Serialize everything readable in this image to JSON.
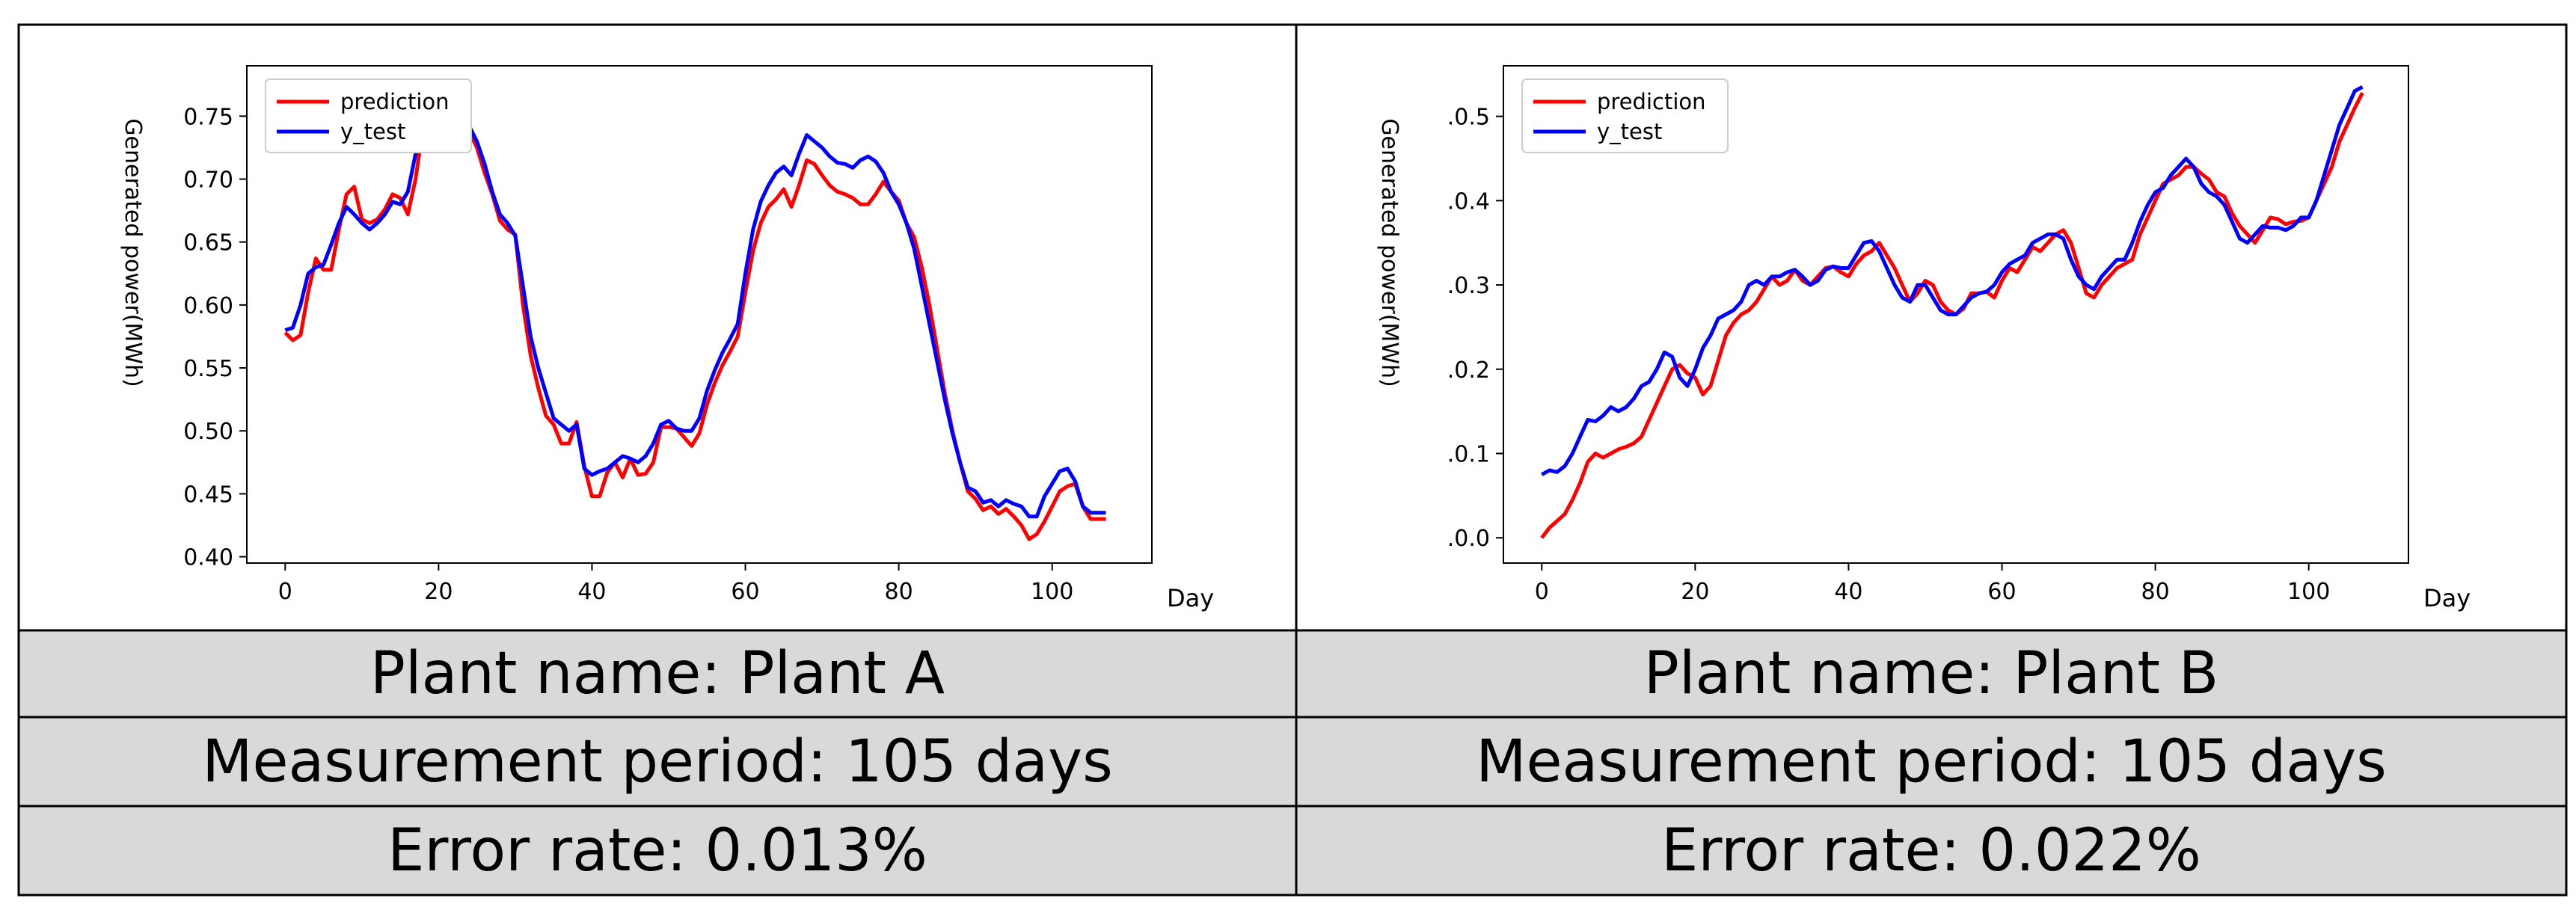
{
  "colors": {
    "prediction": "#ff0000",
    "y_test": "#0000ff",
    "info_row_bg": "#d9d9d9",
    "border": "#000000"
  },
  "chart_data": [
    {
      "type": "line",
      "title": "",
      "xlabel": "Day",
      "ylabel": "Generated power(MWh)",
      "xlim": [
        -5,
        113
      ],
      "ylim": [
        0.395,
        0.79
      ],
      "xticks": [
        0,
        20,
        40,
        60,
        80,
        100
      ],
      "yticks": [
        0.4,
        0.45,
        0.5,
        0.55,
        0.6,
        0.65,
        0.7,
        0.75
      ],
      "ytick_labels": [
        "0.40",
        "0.45",
        "0.50",
        "0.55",
        "0.60",
        "0.65",
        "0.70",
        "0.75"
      ],
      "grid": false,
      "legend_position": "top-left",
      "series": [
        {
          "name": "prediction",
          "color": "#ff0000",
          "x": [
            0,
            1,
            2,
            3,
            4,
            5,
            6,
            7,
            8,
            9,
            10,
            11,
            12,
            13,
            14,
            15,
            16,
            17,
            18,
            19,
            20,
            21,
            22,
            23,
            24,
            25,
            26,
            27,
            28,
            29,
            30,
            31,
            32,
            33,
            34,
            35,
            36,
            37,
            38,
            39,
            40,
            41,
            42,
            43,
            44,
            45,
            46,
            47,
            48,
            49,
            50,
            51,
            52,
            53,
            54,
            55,
            56,
            57,
            58,
            59,
            60,
            61,
            62,
            63,
            64,
            65,
            66,
            67,
            68,
            69,
            70,
            71,
            72,
            73,
            74,
            75,
            76,
            77,
            78,
            79,
            80,
            81,
            82,
            83,
            84,
            85,
            86,
            87,
            88,
            89,
            90,
            91,
            92,
            93,
            94,
            95,
            96,
            97,
            98,
            99,
            100,
            101,
            102,
            103,
            104,
            105,
            106,
            107
          ],
          "y": [
            0.578,
            0.572,
            0.576,
            0.61,
            0.637,
            0.628,
            0.628,
            0.66,
            0.688,
            0.694,
            0.668,
            0.665,
            0.668,
            0.676,
            0.688,
            0.685,
            0.672,
            0.7,
            0.742,
            0.768,
            0.754,
            0.735,
            0.722,
            0.735,
            0.738,
            0.725,
            0.705,
            0.688,
            0.667,
            0.66,
            0.656,
            0.6,
            0.56,
            0.534,
            0.512,
            0.505,
            0.49,
            0.49,
            0.507,
            0.472,
            0.448,
            0.448,
            0.467,
            0.475,
            0.463,
            0.478,
            0.465,
            0.466,
            0.475,
            0.503,
            0.503,
            0.502,
            0.495,
            0.488,
            0.498,
            0.521,
            0.538,
            0.552,
            0.563,
            0.575,
            0.61,
            0.643,
            0.665,
            0.678,
            0.684,
            0.692,
            0.678,
            0.695,
            0.715,
            0.712,
            0.703,
            0.695,
            0.69,
            0.688,
            0.685,
            0.68,
            0.68,
            0.688,
            0.698,
            0.69,
            0.683,
            0.665,
            0.654,
            0.63,
            0.6,
            0.565,
            0.53,
            0.5,
            0.475,
            0.452,
            0.446,
            0.437,
            0.44,
            0.434,
            0.438,
            0.432,
            0.425,
            0.414,
            0.418,
            0.428,
            0.44,
            0.452,
            0.456,
            0.458,
            0.44,
            0.43,
            0.43,
            0.43
          ]
        },
        {
          "name": "y_test",
          "color": "#0000ff",
          "x": [
            0,
            1,
            2,
            3,
            4,
            5,
            6,
            7,
            8,
            9,
            10,
            11,
            12,
            13,
            14,
            15,
            16,
            17,
            18,
            19,
            20,
            21,
            22,
            23,
            24,
            25,
            26,
            27,
            28,
            29,
            30,
            31,
            32,
            33,
            34,
            35,
            36,
            37,
            38,
            39,
            40,
            41,
            42,
            43,
            44,
            45,
            46,
            47,
            48,
            49,
            50,
            51,
            52,
            53,
            54,
            55,
            56,
            57,
            58,
            59,
            60,
            61,
            62,
            63,
            64,
            65,
            66,
            67,
            68,
            69,
            70,
            71,
            72,
            73,
            74,
            75,
            76,
            77,
            78,
            79,
            80,
            81,
            82,
            83,
            84,
            85,
            86,
            87,
            88,
            89,
            90,
            91,
            92,
            93,
            94,
            95,
            96,
            97,
            98,
            99,
            100,
            101,
            102,
            103,
            104,
            105,
            106,
            107
          ],
          "y": [
            0.58,
            0.582,
            0.6,
            0.625,
            0.63,
            0.632,
            0.648,
            0.665,
            0.678,
            0.672,
            0.665,
            0.66,
            0.665,
            0.672,
            0.682,
            0.68,
            0.69,
            0.72,
            0.748,
            0.76,
            0.75,
            0.74,
            0.735,
            0.745,
            0.742,
            0.73,
            0.712,
            0.69,
            0.672,
            0.665,
            0.655,
            0.615,
            0.575,
            0.55,
            0.53,
            0.51,
            0.505,
            0.5,
            0.505,
            0.47,
            0.465,
            0.468,
            0.47,
            0.475,
            0.48,
            0.478,
            0.475,
            0.48,
            0.49,
            0.505,
            0.508,
            0.502,
            0.5,
            0.5,
            0.51,
            0.532,
            0.548,
            0.562,
            0.573,
            0.585,
            0.625,
            0.66,
            0.682,
            0.695,
            0.705,
            0.71,
            0.703,
            0.72,
            0.735,
            0.73,
            0.725,
            0.718,
            0.713,
            0.712,
            0.709,
            0.715,
            0.718,
            0.714,
            0.705,
            0.69,
            0.68,
            0.665,
            0.645,
            0.615,
            0.585,
            0.555,
            0.525,
            0.498,
            0.475,
            0.455,
            0.452,
            0.443,
            0.445,
            0.44,
            0.445,
            0.442,
            0.44,
            0.432,
            0.432,
            0.448,
            0.458,
            0.468,
            0.47,
            0.46,
            0.44,
            0.435,
            0.435,
            0.435
          ]
        }
      ]
    },
    {
      "type": "line",
      "title": "",
      "xlabel": "Day",
      "ylabel": "Generated power(MWh)",
      "xlim": [
        -5,
        113
      ],
      "ylim": [
        -0.03,
        0.56
      ],
      "xticks": [
        0,
        20,
        40,
        60,
        80,
        100
      ],
      "yticks": [
        0.0,
        0.1,
        0.2,
        0.3,
        0.4,
        0.5
      ],
      "ytick_labels": [
        ".0.0",
        ".0.1",
        ".0.2",
        ".0.3",
        ".0.4",
        ".0.5"
      ],
      "grid": false,
      "legend_position": "top-left",
      "series": [
        {
          "name": "prediction",
          "color": "#ff0000",
          "x": [
            0,
            1,
            2,
            3,
            4,
            5,
            6,
            7,
            8,
            9,
            10,
            11,
            12,
            13,
            14,
            15,
            16,
            17,
            18,
            19,
            20,
            21,
            22,
            23,
            24,
            25,
            26,
            27,
            28,
            29,
            30,
            31,
            32,
            33,
            34,
            35,
            36,
            37,
            38,
            39,
            40,
            41,
            42,
            43,
            44,
            45,
            46,
            47,
            48,
            49,
            50,
            51,
            52,
            53,
            54,
            55,
            56,
            57,
            58,
            59,
            60,
            61,
            62,
            63,
            64,
            65,
            66,
            67,
            68,
            69,
            70,
            71,
            72,
            73,
            74,
            75,
            76,
            77,
            78,
            79,
            80,
            81,
            82,
            83,
            84,
            85,
            86,
            87,
            88,
            89,
            90,
            91,
            92,
            93,
            94,
            95,
            96,
            97,
            98,
            99,
            100,
            101,
            102,
            103,
            104,
            105,
            106,
            107
          ],
          "y": [
            0.0,
            0.012,
            0.02,
            0.028,
            0.045,
            0.065,
            0.09,
            0.1,
            0.095,
            0.1,
            0.105,
            0.108,
            0.112,
            0.12,
            0.14,
            0.16,
            0.18,
            0.2,
            0.205,
            0.195,
            0.19,
            0.17,
            0.18,
            0.21,
            0.24,
            0.255,
            0.265,
            0.27,
            0.28,
            0.295,
            0.31,
            0.3,
            0.305,
            0.318,
            0.305,
            0.3,
            0.31,
            0.32,
            0.322,
            0.315,
            0.31,
            0.325,
            0.335,
            0.34,
            0.35,
            0.335,
            0.32,
            0.3,
            0.28,
            0.29,
            0.305,
            0.3,
            0.28,
            0.27,
            0.265,
            0.272,
            0.29,
            0.29,
            0.292,
            0.285,
            0.305,
            0.32,
            0.315,
            0.33,
            0.345,
            0.34,
            0.35,
            0.36,
            0.365,
            0.35,
            0.32,
            0.29,
            0.285,
            0.3,
            0.31,
            0.32,
            0.325,
            0.33,
            0.36,
            0.38,
            0.4,
            0.42,
            0.425,
            0.43,
            0.44,
            0.44,
            0.432,
            0.425,
            0.41,
            0.405,
            0.385,
            0.37,
            0.36,
            0.35,
            0.365,
            0.38,
            0.378,
            0.372,
            0.375,
            0.376,
            0.38,
            0.4,
            0.42,
            0.44,
            0.47,
            0.49,
            0.51,
            0.528
          ]
        },
        {
          "name": "y_test",
          "color": "#0000ff",
          "x": [
            0,
            1,
            2,
            3,
            4,
            5,
            6,
            7,
            8,
            9,
            10,
            11,
            12,
            13,
            14,
            15,
            16,
            17,
            18,
            19,
            20,
            21,
            22,
            23,
            24,
            25,
            26,
            27,
            28,
            29,
            30,
            31,
            32,
            33,
            34,
            35,
            36,
            37,
            38,
            39,
            40,
            41,
            42,
            43,
            44,
            45,
            46,
            47,
            48,
            49,
            50,
            51,
            52,
            53,
            54,
            55,
            56,
            57,
            58,
            59,
            60,
            61,
            62,
            63,
            64,
            65,
            66,
            67,
            68,
            69,
            70,
            71,
            72,
            73,
            74,
            75,
            76,
            77,
            78,
            79,
            80,
            81,
            82,
            83,
            84,
            85,
            86,
            87,
            88,
            89,
            90,
            91,
            92,
            93,
            94,
            95,
            96,
            97,
            98,
            99,
            100,
            101,
            102,
            103,
            104,
            105,
            106,
            107
          ],
          "y": [
            0.075,
            0.08,
            0.078,
            0.085,
            0.1,
            0.12,
            0.14,
            0.138,
            0.145,
            0.155,
            0.15,
            0.155,
            0.165,
            0.18,
            0.185,
            0.2,
            0.22,
            0.215,
            0.19,
            0.18,
            0.2,
            0.225,
            0.24,
            0.26,
            0.265,
            0.27,
            0.28,
            0.3,
            0.305,
            0.3,
            0.31,
            0.31,
            0.315,
            0.318,
            0.31,
            0.3,
            0.305,
            0.318,
            0.322,
            0.32,
            0.32,
            0.335,
            0.35,
            0.352,
            0.34,
            0.32,
            0.3,
            0.285,
            0.28,
            0.3,
            0.3,
            0.285,
            0.27,
            0.265,
            0.265,
            0.275,
            0.285,
            0.29,
            0.292,
            0.3,
            0.315,
            0.325,
            0.33,
            0.335,
            0.35,
            0.355,
            0.36,
            0.36,
            0.355,
            0.33,
            0.31,
            0.3,
            0.295,
            0.31,
            0.32,
            0.33,
            0.33,
            0.35,
            0.375,
            0.395,
            0.41,
            0.415,
            0.43,
            0.44,
            0.45,
            0.44,
            0.42,
            0.41,
            0.405,
            0.395,
            0.375,
            0.355,
            0.35,
            0.36,
            0.37,
            0.368,
            0.368,
            0.365,
            0.37,
            0.38,
            0.38,
            0.4,
            0.43,
            0.46,
            0.49,
            0.51,
            0.53,
            0.535
          ]
        }
      ]
    }
  ],
  "table": {
    "plant_a": {
      "name": "Plant name: Plant A",
      "period": "Measurement period: 105 days",
      "error": "Error rate: 0.013%"
    },
    "plant_b": {
      "name": "Plant name: Plant B",
      "period": "Measurement period: 105 days",
      "error": "Error rate: 0.022%"
    }
  }
}
